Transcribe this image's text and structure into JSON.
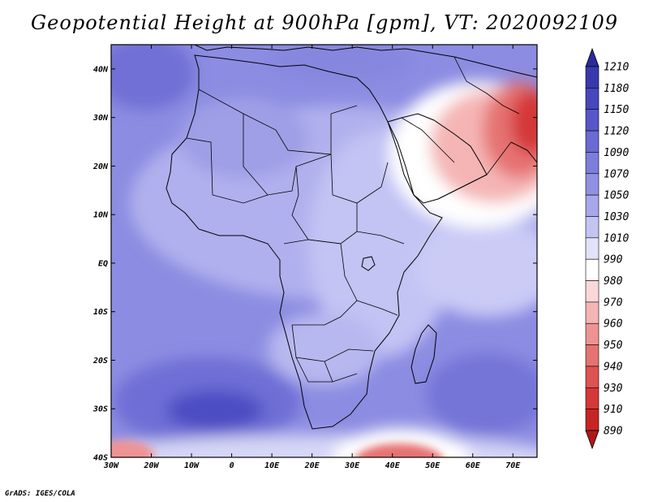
{
  "title": "Geopotential Height at 900hPa [gpm], VT: 2020092109",
  "credit": "GrADS: IGES/COLA",
  "map": {
    "lon_range": [
      -30,
      76
    ],
    "lat_range": [
      -40,
      45
    ],
    "x_ticks": [
      {
        "lon": -30,
        "label": "30W"
      },
      {
        "lon": -20,
        "label": "20W"
      },
      {
        "lon": -10,
        "label": "10W"
      },
      {
        "lon": 0,
        "label": "0"
      },
      {
        "lon": 10,
        "label": "10E"
      },
      {
        "lon": 20,
        "label": "20E"
      },
      {
        "lon": 30,
        "label": "30E"
      },
      {
        "lon": 40,
        "label": "40E"
      },
      {
        "lon": 50,
        "label": "50E"
      },
      {
        "lon": 60,
        "label": "60E"
      },
      {
        "lon": 70,
        "label": "70E"
      }
    ],
    "y_ticks": [
      {
        "lat": 40,
        "label": "40N"
      },
      {
        "lat": 30,
        "label": "30N"
      },
      {
        "lat": 20,
        "label": "20N"
      },
      {
        "lat": 10,
        "label": "10N"
      },
      {
        "lat": 0,
        "label": "EQ"
      },
      {
        "lat": -10,
        "label": "10S"
      },
      {
        "lat": -20,
        "label": "20S"
      },
      {
        "lat": -30,
        "label": "30S"
      },
      {
        "lat": -40,
        "label": "40S"
      }
    ],
    "colorbar": [
      {
        "label": "1210",
        "color": "#2a2a9a"
      },
      {
        "label": "1180",
        "color": "#3939ae"
      },
      {
        "label": "1150",
        "color": "#4747be"
      },
      {
        "label": "1120",
        "color": "#5757c9"
      },
      {
        "label": "1090",
        "color": "#6a6ad3"
      },
      {
        "label": "1070",
        "color": "#7d7ddc"
      },
      {
        "label": "1050",
        "color": "#9191e3"
      },
      {
        "label": "1030",
        "color": "#a7a7eb"
      },
      {
        "label": "1010",
        "color": "#c4c4f3"
      },
      {
        "label": "990",
        "color": "#e2e2fa"
      },
      {
        "label": "980",
        "color": "#ffffff"
      },
      {
        "label": "970",
        "color": "#fbd8d8"
      },
      {
        "label": "960",
        "color": "#f5b5b5"
      },
      {
        "label": "950",
        "color": "#ee9393"
      },
      {
        "label": "940",
        "color": "#e67272"
      },
      {
        "label": "930",
        "color": "#de5252"
      },
      {
        "label": "910",
        "color": "#d43838"
      },
      {
        "label": "890",
        "color": "#c62525"
      },
      {
        "label": "",
        "color": "#b01818"
      }
    ]
  }
}
